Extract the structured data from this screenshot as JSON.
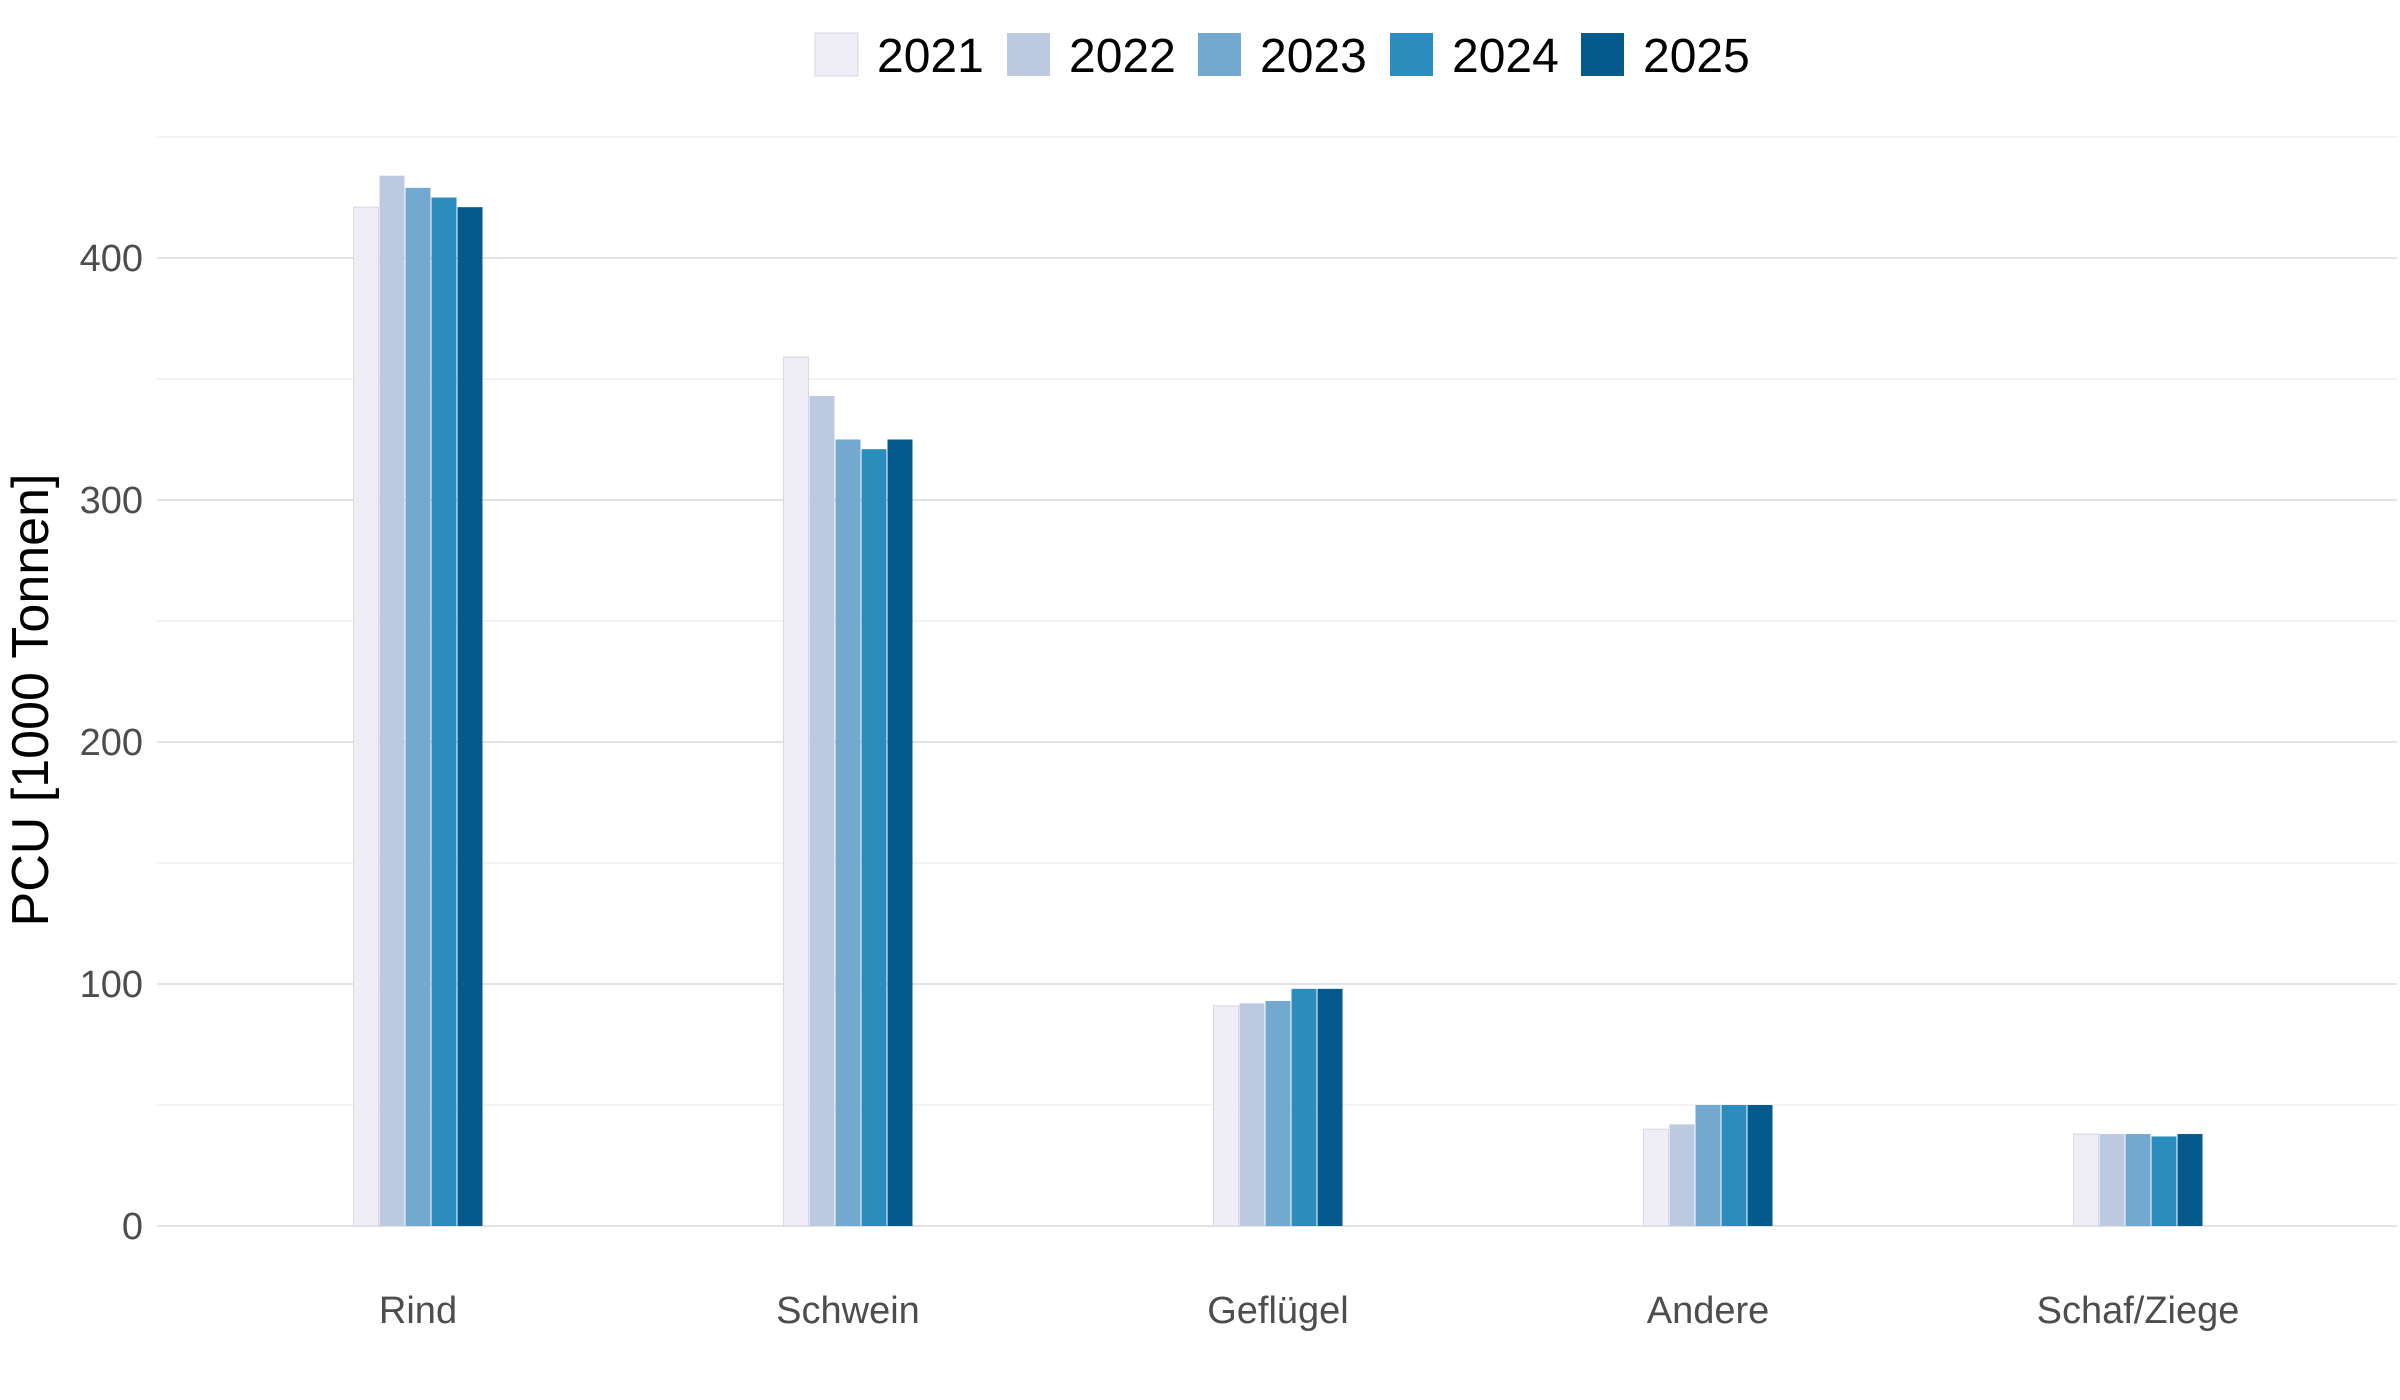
{
  "chart_data": {
    "type": "bar",
    "ylabel": "PCU [1000 Tonnen]",
    "xlabel": "",
    "ylim": [
      0,
      450
    ],
    "yticks": [
      0,
      100,
      200,
      300,
      400
    ],
    "grid": true,
    "legend_position": "top",
    "categories": [
      "Rind",
      "Schwein",
      "Geflügel",
      "Andere",
      "Schaf/Ziege"
    ],
    "series": [
      {
        "name": "2021",
        "color": "#efedf5",
        "values": [
          421,
          359,
          91,
          40,
          38
        ]
      },
      {
        "name": "2022",
        "color": "#bdc9e1",
        "values": [
          434,
          343,
          92,
          42,
          38
        ]
      },
      {
        "name": "2023",
        "color": "#74a9cf",
        "values": [
          429,
          325,
          93,
          50,
          38
        ]
      },
      {
        "name": "2024",
        "color": "#2b8cbe",
        "values": [
          425,
          321,
          98,
          50,
          37
        ]
      },
      {
        "name": "2025",
        "color": "#045a8d",
        "values": [
          421,
          325,
          98,
          50,
          38
        ]
      }
    ]
  }
}
